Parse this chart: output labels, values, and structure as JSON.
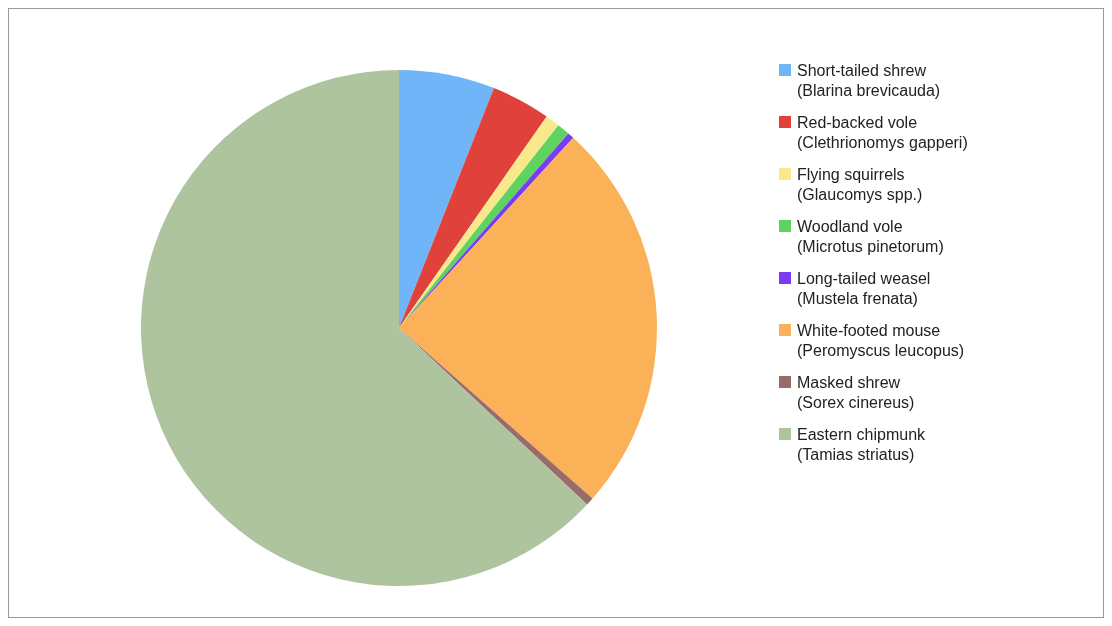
{
  "chart_data": {
    "type": "pie",
    "categories": [
      "Short-tailed shrew\n(Blarina brevicauda)",
      "Red-backed vole\n(Clethrionomys gapperi)",
      "Flying squirrels\n(Glaucomys spp.)",
      "Woodland vole\n(Microtus pinetorum)",
      "Long-tailed weasel\n(Mustela frenata)",
      "White-footed mouse\n(Peromyscus leucopus)",
      "Masked shrew\n(Sorex cinereus)",
      "Eastern chipmunk\n(Tamias striatus)"
    ],
    "values": [
      6.0,
      3.7,
      0.9,
      0.8,
      0.4,
      24.7,
      0.5,
      63.0
    ],
    "colors": [
      "#6fb5f7",
      "#e0413a",
      "#f8ea8c",
      "#5fd35f",
      "#7a3cf0",
      "#fbb157",
      "#9a6b6b",
      "#adc49f"
    ],
    "legend": "right"
  }
}
